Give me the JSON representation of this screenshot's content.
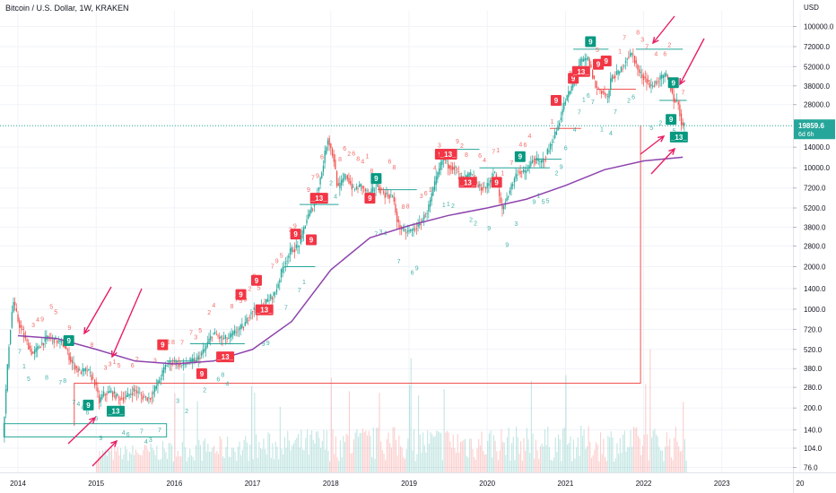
{
  "header": {
    "title": "Bitcoin / U.S. Dollar, 1W, KRAKEN",
    "currency": "USD"
  },
  "price_badge": {
    "price": "19859.6",
    "countdown": "6d 6h",
    "color": "#26a69a"
  },
  "colors": {
    "up": "#26a69a",
    "down": "#ef5350",
    "ma": "#8e44ad",
    "arrow": "#e91e63",
    "sig_red": "#f23645",
    "sig_green": "#089981"
  },
  "chart_data": {
    "type": "line",
    "title": "Bitcoin / U.S. Dollar, 1W, KRAKEN",
    "y_scale": "log",
    "ylim": [
      65,
      130000
    ],
    "xlim": [
      2013.8,
      2024.0
    ],
    "y_ticks": [
      "100000.0",
      "72000.0",
      "52000.0",
      "38000.0",
      "28000.0",
      "14000.0",
      "10000.0",
      "7200.0",
      "5200.0",
      "3800.0",
      "2800.0",
      "2000.0",
      "1400.0",
      "1000.0",
      "720.0",
      "520.0",
      "380.0",
      "280.0",
      "200.0",
      "140.0",
      "104.0",
      "76.0"
    ],
    "x_ticks": [
      "2014",
      "2015",
      "2016",
      "2017",
      "2018",
      "2019",
      "2020",
      "2021",
      "2022",
      "2023",
      "20"
    ],
    "series": [
      {
        "values": [
          [
            2013.82,
            125
          ],
          [
            2013.9,
            600
          ],
          [
            2013.95,
            1150
          ],
          [
            2014.02,
            800
          ],
          [
            2014.1,
            620
          ],
          [
            2014.2,
            480
          ],
          [
            2014.3,
            560
          ],
          [
            2014.4,
            640
          ],
          [
            2014.5,
            600
          ],
          [
            2014.6,
            560
          ],
          [
            2014.7,
            420
          ],
          [
            2014.8,
            360
          ],
          [
            2014.9,
            370
          ],
          [
            2015.0,
            300
          ],
          [
            2015.05,
            220
          ],
          [
            2015.1,
            250
          ],
          [
            2015.2,
            260
          ],
          [
            2015.3,
            235
          ],
          [
            2015.4,
            240
          ],
          [
            2015.5,
            270
          ],
          [
            2015.6,
            240
          ],
          [
            2015.7,
            235
          ],
          [
            2015.8,
            300
          ],
          [
            2015.9,
            400
          ],
          [
            2016.0,
            430
          ],
          [
            2016.1,
            400
          ],
          [
            2016.2,
            420
          ],
          [
            2016.3,
            440
          ],
          [
            2016.4,
            520
          ],
          [
            2016.5,
            680
          ],
          [
            2016.6,
            620
          ],
          [
            2016.7,
            620
          ],
          [
            2016.8,
            700
          ],
          [
            2016.9,
            760
          ],
          [
            2017.0,
            990
          ],
          [
            2017.1,
            1000
          ],
          [
            2017.2,
            1150
          ],
          [
            2017.3,
            1300
          ],
          [
            2017.4,
            2000
          ],
          [
            2017.5,
            2600
          ],
          [
            2017.6,
            2800
          ],
          [
            2017.7,
            4300
          ],
          [
            2017.8,
            5600
          ],
          [
            2017.9,
            9500
          ],
          [
            2017.97,
            16500
          ],
          [
            2018.05,
            11500
          ],
          [
            2018.1,
            7000
          ],
          [
            2018.2,
            9000
          ],
          [
            2018.3,
            7000
          ],
          [
            2018.4,
            7500
          ],
          [
            2018.5,
            6400
          ],
          [
            2018.6,
            7500
          ],
          [
            2018.7,
            6500
          ],
          [
            2018.8,
            6300
          ],
          [
            2018.87,
            4000
          ],
          [
            2018.95,
            3500
          ],
          [
            2019.05,
            3600
          ],
          [
            2019.15,
            4000
          ],
          [
            2019.25,
            5000
          ],
          [
            2019.35,
            8000
          ],
          [
            2019.45,
            12000
          ],
          [
            2019.5,
            10500
          ],
          [
            2019.6,
            10000
          ],
          [
            2019.7,
            8200
          ],
          [
            2019.8,
            9000
          ],
          [
            2019.9,
            7300
          ],
          [
            2020.0,
            7200
          ],
          [
            2020.1,
            9500
          ],
          [
            2020.2,
            5000
          ],
          [
            2020.3,
            7000
          ],
          [
            2020.4,
            9500
          ],
          [
            2020.5,
            9200
          ],
          [
            2020.6,
            11500
          ],
          [
            2020.7,
            10800
          ],
          [
            2020.8,
            13500
          ],
          [
            2020.9,
            18500
          ],
          [
            2021.0,
            29000
          ],
          [
            2021.1,
            38000
          ],
          [
            2021.2,
            56000
          ],
          [
            2021.3,
            59000
          ],
          [
            2021.4,
            37000
          ],
          [
            2021.5,
            34000
          ],
          [
            2021.55,
            31000
          ],
          [
            2021.6,
            44000
          ],
          [
            2021.7,
            47000
          ],
          [
            2021.8,
            61000
          ],
          [
            2021.87,
            64000
          ],
          [
            2021.95,
            47000
          ],
          [
            2022.05,
            42000
          ],
          [
            2022.1,
            37000
          ],
          [
            2022.2,
            42000
          ],
          [
            2022.3,
            45000
          ],
          [
            2022.35,
            38000
          ],
          [
            2022.4,
            30000
          ],
          [
            2022.45,
            29000
          ],
          [
            2022.5,
            19859.6
          ]
        ]
      },
      {
        "values": [
          [
            2014.0,
            650
          ],
          [
            2014.5,
            620
          ],
          [
            2015.0,
            520
          ],
          [
            2015.5,
            430
          ],
          [
            2016.0,
            410
          ],
          [
            2016.5,
            430
          ],
          [
            2017.0,
            520
          ],
          [
            2017.5,
            820
          ],
          [
            2018.0,
            1900
          ],
          [
            2018.5,
            3200
          ],
          [
            2019.0,
            3900
          ],
          [
            2019.5,
            4600
          ],
          [
            2020.0,
            5200
          ],
          [
            2020.5,
            6000
          ],
          [
            2021.0,
            7500
          ],
          [
            2021.5,
            9700
          ],
          [
            2022.0,
            11200
          ],
          [
            2022.5,
            11900
          ]
        ]
      }
    ]
  },
  "signals": [
    {
      "text": "9",
      "x": 2014.65,
      "y": 600,
      "color": "#089981"
    },
    {
      "text": "9",
      "x": 2014.9,
      "y": 210,
      "color": "#089981"
    },
    {
      "text": "_13_",
      "x": 2015.25,
      "y": 190,
      "color": "#089981"
    },
    {
      "text": "9",
      "x": 2015.85,
      "y": 560,
      "color": "#f23645"
    },
    {
      "text": "9",
      "x": 2016.35,
      "y": 350,
      "color": "#f23645"
    },
    {
      "text": "_13_",
      "x": 2016.65,
      "y": 460,
      "color": "#f23645"
    },
    {
      "text": "9",
      "x": 2016.85,
      "y": 1270,
      "color": "#f23645"
    },
    {
      "text": "9",
      "x": 2017.05,
      "y": 1600,
      "color": "#f23645"
    },
    {
      "text": "_13_",
      "x": 2017.15,
      "y": 990,
      "color": "#f23645"
    },
    {
      "text": "9",
      "x": 2017.55,
      "y": 3400,
      "color": "#f23645"
    },
    {
      "text": "9",
      "x": 2017.75,
      "y": 3100,
      "color": "#f23645"
    },
    {
      "text": "_13_",
      "x": 2017.85,
      "y": 6100,
      "color": "#f23645"
    },
    {
      "text": "9",
      "x": 2018.5,
      "y": 6100,
      "color": "#f23645"
    },
    {
      "text": "9",
      "x": 2018.58,
      "y": 8400,
      "color": "#089981"
    },
    {
      "text": "9",
      "x": 2019.4,
      "y": 12500,
      "color": "#f23645"
    },
    {
      "text": "_13_",
      "x": 2019.5,
      "y": 12500,
      "color": "#f23645"
    },
    {
      "text": "_13_",
      "x": 2019.75,
      "y": 7900,
      "color": "#f23645"
    },
    {
      "text": "9",
      "x": 2020.12,
      "y": 7900,
      "color": "#f23645"
    },
    {
      "text": "9",
      "x": 2020.42,
      "y": 12000,
      "color": "#089981"
    },
    {
      "text": "9",
      "x": 2020.88,
      "y": 30000,
      "color": "#f23645"
    },
    {
      "text": "9",
      "x": 2021.1,
      "y": 43000,
      "color": "#f23645"
    },
    {
      "text": "_13_",
      "x": 2021.2,
      "y": 48000,
      "color": "#f23645"
    },
    {
      "text": "9",
      "x": 2021.32,
      "y": 78000,
      "color": "#089981"
    },
    {
      "text": "9",
      "x": 2021.42,
      "y": 54000,
      "color": "#f23645"
    },
    {
      "text": "9",
      "x": 2021.52,
      "y": 57000,
      "color": "#f23645"
    },
    {
      "text": "9",
      "x": 2022.38,
      "y": 40000,
      "color": "#089981"
    },
    {
      "text": "9",
      "x": 2022.35,
      "y": 22000,
      "color": "#089981"
    },
    {
      "text": "_13_",
      "x": 2022.45,
      "y": 16500,
      "color": "#089981"
    }
  ]
}
